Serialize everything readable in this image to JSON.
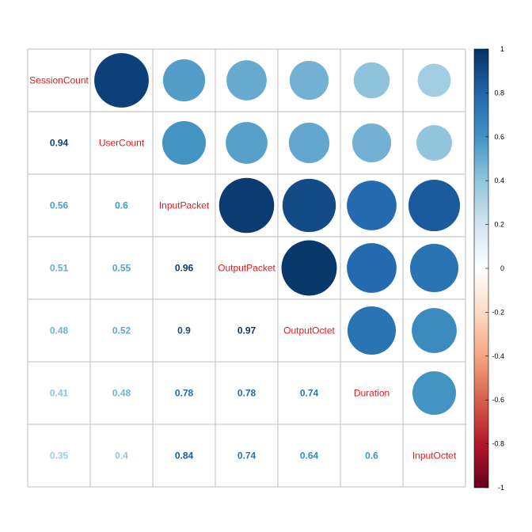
{
  "chart_data": {
    "type": "heatmap",
    "variables": [
      "SessionCount",
      "UserCount",
      "InputPacket",
      "OutputPacket",
      "OutputOctet",
      "Duration",
      "InputOctet"
    ],
    "matrix": [
      [
        1,
        0.94,
        0.56,
        0.51,
        0.48,
        0.41,
        0.35
      ],
      [
        0.94,
        1,
        0.6,
        0.55,
        0.52,
        0.48,
        0.4
      ],
      [
        0.56,
        0.6,
        1,
        0.96,
        0.9,
        0.78,
        0.84
      ],
      [
        0.51,
        0.55,
        0.96,
        1,
        0.97,
        0.78,
        0.74
      ],
      [
        0.48,
        0.52,
        0.9,
        0.97,
        1,
        0.74,
        0.64
      ],
      [
        0.41,
        0.48,
        0.78,
        0.78,
        0.74,
        1,
        0.6
      ],
      [
        0.35,
        0.4,
        0.84,
        0.74,
        0.64,
        0.6,
        1
      ]
    ],
    "lower_labels": [
      [
        "0.94"
      ],
      [
        "0.56",
        "0.6"
      ],
      [
        "0.51",
        "0.55",
        "0.96"
      ],
      [
        "0.48",
        "0.52",
        "0.9",
        "0.97"
      ],
      [
        "0.41",
        "0.48",
        "0.78",
        "0.78",
        "0.74"
      ],
      [
        "0.35",
        "0.4",
        "0.84",
        "0.74",
        "0.64",
        "0.6"
      ]
    ],
    "upper_method": "circle",
    "lower_method": "number",
    "diagonal": "variable names",
    "color_range": [
      -1,
      1
    ],
    "colorbar_ticks": [
      "-1",
      "-0.8",
      "-0.6",
      "-0.4",
      "-0.2",
      "0",
      "0.2",
      "0.4",
      "0.6",
      "0.8",
      "1"
    ],
    "colorbar_position": "right",
    "palette": [
      "#67001F",
      "#B2182B",
      "#D6604D",
      "#F4A582",
      "#FDDBC7",
      "#FFFFFF",
      "#D1E5F0",
      "#92C5DE",
      "#4393C3",
      "#2166AC",
      "#053061"
    ],
    "label_color": "#E41A1C",
    "grid_color": "#BEBEBE"
  }
}
